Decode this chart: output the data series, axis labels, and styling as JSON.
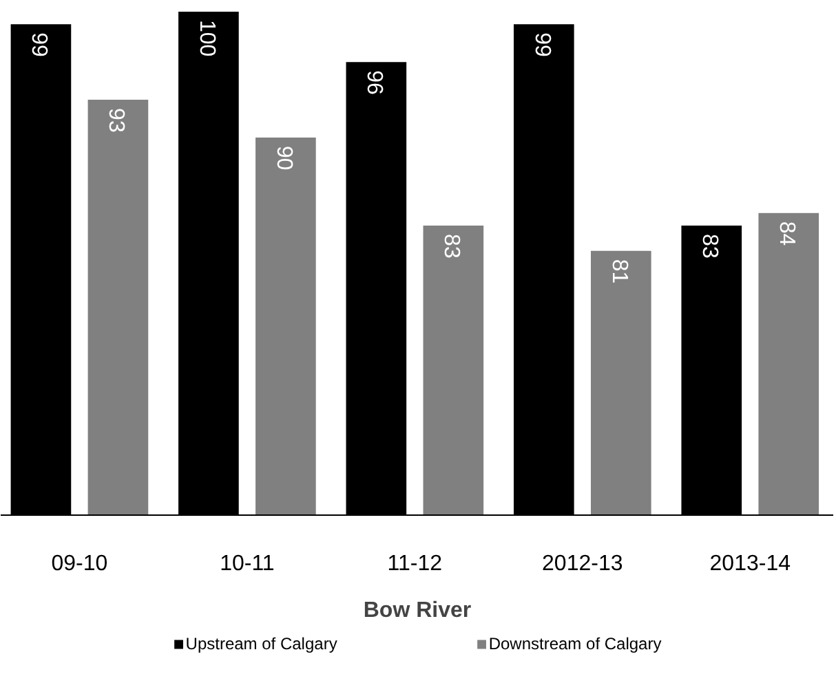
{
  "chart_data": {
    "type": "bar",
    "xlabel": "Bow River",
    "categories": [
      "09-10",
      "10-11",
      "11-12",
      "2012-13",
      "2013-14"
    ],
    "series": [
      {
        "name": "Upstream of Calgary",
        "color": "#000000",
        "values": [
          99,
          100,
          96,
          99,
          83
        ]
      },
      {
        "name": "Downstream of Calgary",
        "color": "#808080",
        "values": [
          93,
          90,
          83,
          81,
          84
        ]
      }
    ],
    "ylim": [
      60,
      100
    ],
    "data_labels": true,
    "legend": "bottom",
    "grid": false,
    "tick_labels": "x"
  }
}
